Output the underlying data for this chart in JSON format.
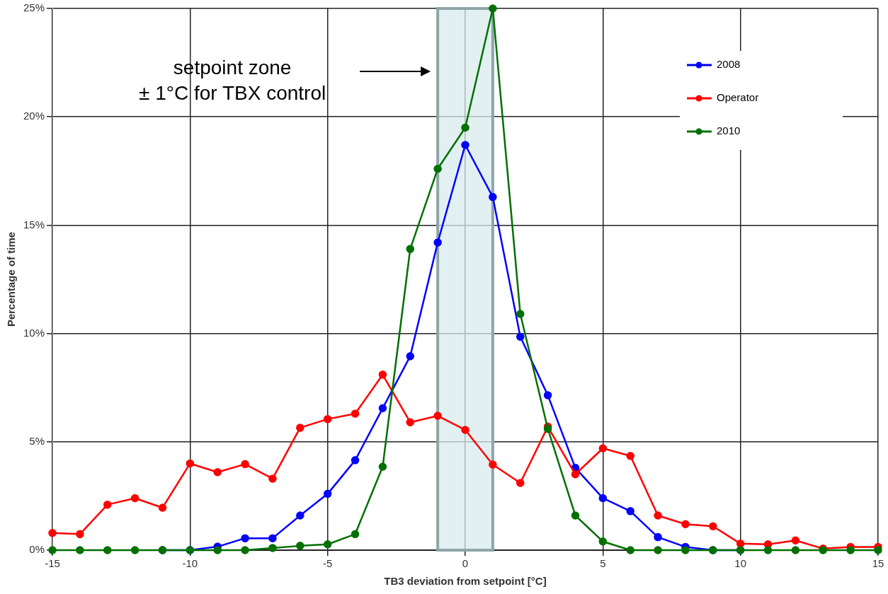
{
  "chart_data": {
    "type": "line",
    "xlabel": "TB3 deviation from setpoint [°C]",
    "ylabel": "Percentage of time",
    "x": [
      -15,
      -14,
      -13,
      -12,
      -11,
      -10,
      -9,
      -8,
      -7,
      -6,
      -5,
      -4,
      -3,
      -2,
      -1,
      0,
      1,
      2,
      3,
      4,
      5,
      6,
      7,
      8,
      9,
      10,
      11,
      12,
      13,
      14,
      15
    ],
    "series": [
      {
        "name": "2008",
        "color": "#0000ff",
        "values": [
          null,
          null,
          null,
          null,
          0,
          0,
          0.16,
          0.55,
          0.55,
          1.6,
          2.6,
          4.15,
          6.55,
          8.95,
          14.2,
          18.7,
          16.3,
          9.85,
          7.15,
          3.8,
          2.4,
          1.8,
          0.6,
          0.15,
          0,
          0,
          null,
          null,
          null,
          null,
          null
        ]
      },
      {
        "name": "Operator",
        "color": "#ff0000",
        "values": [
          0.79,
          0.74,
          2.1,
          2.4,
          1.96,
          4.0,
          3.6,
          3.97,
          3.3,
          5.65,
          6.05,
          6.3,
          8.1,
          5.9,
          6.2,
          5.55,
          3.95,
          3.1,
          5.7,
          3.5,
          4.7,
          4.35,
          1.6,
          1.2,
          1.1,
          0.3,
          0.27,
          0.45,
          0.07,
          0.15,
          0.15
        ]
      },
      {
        "name": "2010",
        "color": "#007000",
        "values": [
          0,
          0,
          0,
          0,
          0,
          0,
          0,
          0,
          0.1,
          0.2,
          0.27,
          0.74,
          3.85,
          13.9,
          17.6,
          19.5,
          25,
          10.9,
          5.6,
          1.6,
          0.4,
          0,
          0,
          0,
          0,
          0,
          0,
          0,
          0,
          0,
          0
        ]
      }
    ],
    "xlim": [
      -15,
      15
    ],
    "xticks": [
      -15,
      -10,
      -5,
      0,
      5,
      10,
      15
    ],
    "ylim": [
      0,
      25
    ],
    "yticks": [
      {
        "value": 0,
        "label": "0%"
      },
      {
        "value": 5,
        "label": "5%"
      },
      {
        "value": 10,
        "label": "10%"
      },
      {
        "value": 15,
        "label": "15%"
      },
      {
        "value": 20,
        "label": "20%"
      },
      {
        "value": 25,
        "label": "25%"
      }
    ],
    "bands": [
      {
        "axis": "x",
        "from": -1,
        "to": 1,
        "color": "#d9ebee"
      }
    ],
    "annotations": [
      "setpoint zone\n± 1°C for TBX control"
    ],
    "grid": true,
    "legend": "top right",
    "marker": "circle",
    "line_style": "solid"
  }
}
